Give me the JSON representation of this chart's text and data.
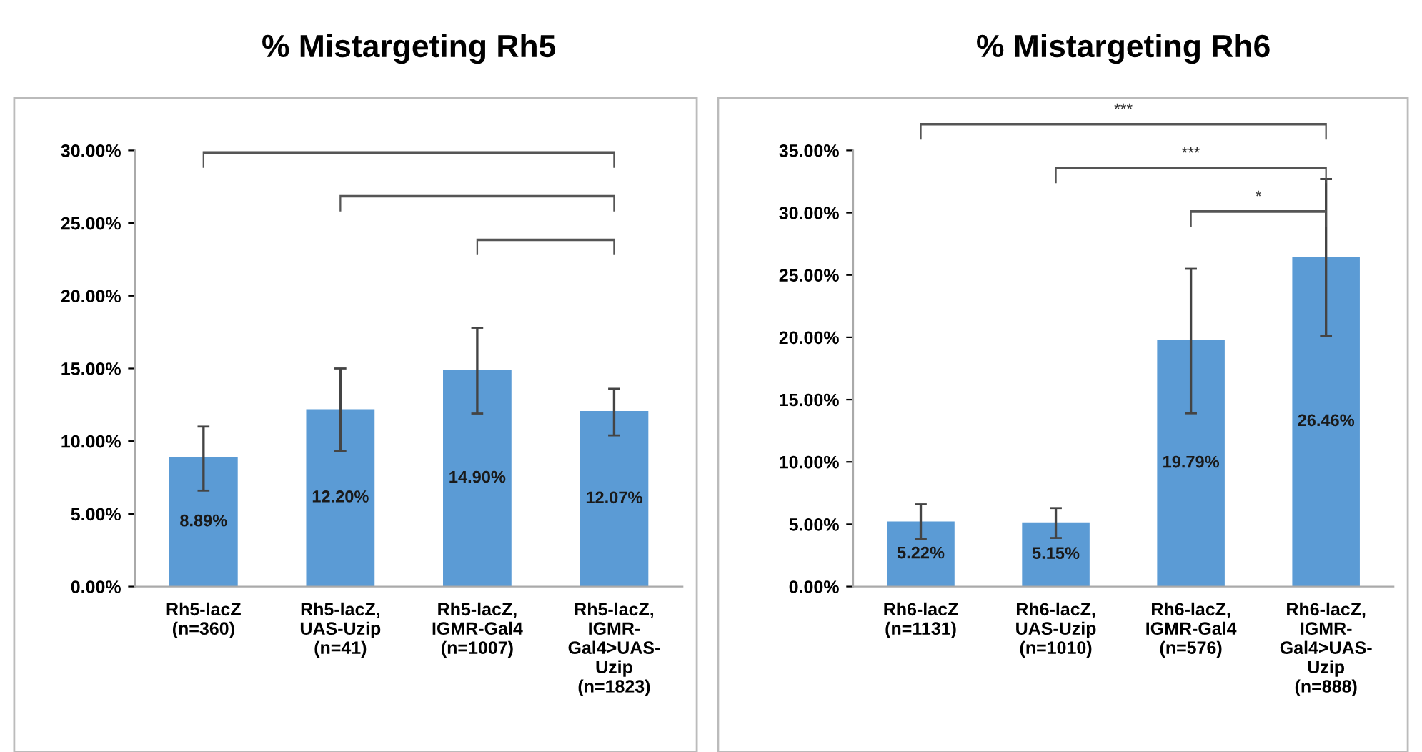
{
  "chart_data": [
    {
      "type": "bar",
      "title": "% Mistargeting Rh5",
      "categories": [
        "Rh5-lacZ\n(n=360)",
        "Rh5-lacZ,\nUAS-Uzip\n(n=41)",
        "Rh5-lacZ,\nIGMR-Gal4\n(n=1007)",
        "Rh5-lacZ,\nIGMR-\nGal4>UAS-\nUzip\n(n=1823)"
      ],
      "values": [
        8.89,
        12.2,
        14.9,
        12.07
      ],
      "errors": [
        [
          6.6,
          11.0
        ],
        [
          9.3,
          15.0
        ],
        [
          11.9,
          17.8
        ],
        [
          10.4,
          13.6
        ]
      ],
      "value_labels": [
        "8.89%",
        "12.20%",
        "14.90%",
        "12.07%"
      ],
      "color": "#5b9bd5",
      "ylim": [
        0,
        30
      ],
      "yticks": [
        {
          "value": 0,
          "label": "0.00%"
        },
        {
          "value": 5,
          "label": "5.00%"
        },
        {
          "value": 10,
          "label": "10.00%"
        },
        {
          "value": 15,
          "label": "15.00%"
        },
        {
          "value": 20,
          "label": "20.00%"
        },
        {
          "value": 25,
          "label": "25.00%"
        },
        {
          "value": 30,
          "label": "30.00%"
        }
      ],
      "grid": false,
      "legend": false
    },
    {
      "type": "bar",
      "title": "% Mistargeting Rh6",
      "categories": [
        "Rh6-lacZ\n(n=1131)",
        "Rh6-lacZ,\nUAS-Uzip\n(n=1010)",
        "Rh6-lacZ,\nIGMR-Gal4\n(n=576)",
        "Rh6-lacZ,\nIGMR-\nGal4>UAS-\nUzip\n(n=888)"
      ],
      "values": [
        5.22,
        5.15,
        19.79,
        26.46
      ],
      "errors": [
        [
          3.8,
          6.6
        ],
        [
          3.9,
          6.3
        ],
        [
          13.9,
          25.5
        ],
        [
          20.1,
          32.7
        ]
      ],
      "value_labels": [
        "5.22%",
        "5.15%",
        "19.79%",
        "26.46%"
      ],
      "color": "#5b9bd5",
      "ylim": [
        0,
        35
      ],
      "yticks": [
        {
          "value": 0,
          "label": "0.00%"
        },
        {
          "value": 5,
          "label": "5.00%"
        },
        {
          "value": 10,
          "label": "10.00%"
        },
        {
          "value": 15,
          "label": "15.00%"
        },
        {
          "value": 20,
          "label": "20.00%"
        },
        {
          "value": 25,
          "label": "25.00%"
        },
        {
          "value": 30,
          "label": "30.00%"
        },
        {
          "value": 35,
          "label": "35.00%"
        }
      ],
      "annotations": [
        "***",
        "***",
        "*"
      ],
      "grid": false,
      "legend": false
    }
  ]
}
